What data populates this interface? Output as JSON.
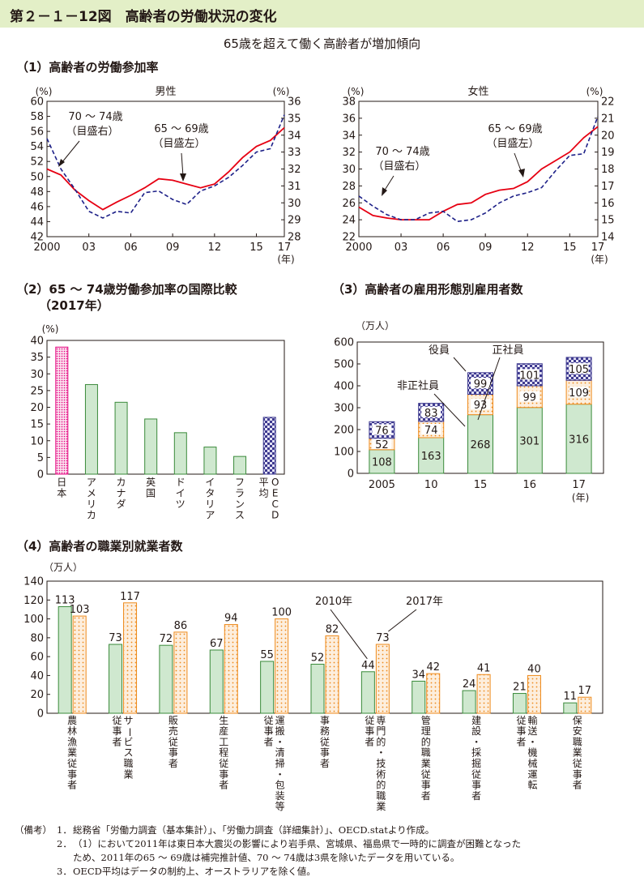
{
  "header": {
    "title": "第２－１－12図　高齢者の労働状況の変化",
    "subtitle": "65歳を超えて働く高齢者が増加傾向"
  },
  "sections": {
    "s1": "（1）高齢者の労働参加率",
    "s2a": "（2）65 ～ 74歳労働参加率の国際比較",
    "s2b": "（2017年）",
    "s3": "（3）高齢者の雇用形態別雇用者数",
    "s4": "（4）高齢者の職業別就業者数"
  },
  "colors": {
    "line_solid": "#e60012",
    "line_dashed": "#1d2088",
    "bar_green_fill": "#cfe8cf",
    "bar_green_stroke": "#3a8a3a",
    "japan_pink": "#e4007f",
    "oecd_blue": "#3e3a8f",
    "orange_dots": "#ee8a1b",
    "banner": "#e3efc7"
  },
  "chart_data": [
    {
      "id": "male",
      "type": "line",
      "title": "男性",
      "unit_left": "(%)",
      "unit_right": "(%)",
      "x_unit": "(年)",
      "x_ticks": [
        "2000",
        "03",
        "06",
        "09",
        "12",
        "15",
        "17"
      ],
      "x_tick_years": [
        2000,
        2003,
        2006,
        2009,
        2012,
        2015,
        2017
      ],
      "x_range": [
        2000,
        2017
      ],
      "ylim_left": [
        42,
        60
      ],
      "yticks_left": [
        42,
        44,
        46,
        48,
        50,
        52,
        54,
        56,
        58,
        60
      ],
      "ylim_right": [
        28,
        36
      ],
      "yticks_right": [
        28,
        29,
        30,
        31,
        32,
        33,
        34,
        35,
        36
      ],
      "series": [
        {
          "name": "65 ～ 69歳（目盛左）",
          "axis": "left",
          "style": "solid",
          "x": [
            2000,
            2001,
            2002,
            2003,
            2004,
            2005,
            2006,
            2007,
            2008,
            2009,
            2010,
            2011,
            2012,
            2013,
            2014,
            2015,
            2016,
            2017
          ],
          "y": [
            51.0,
            50.2,
            48.2,
            46.8,
            45.6,
            46.6,
            47.5,
            48.5,
            49.7,
            49.5,
            49.0,
            48.5,
            49.0,
            50.6,
            52.5,
            54.0,
            54.8,
            56.5
          ]
        },
        {
          "name": "70 ～ 74歳（目盛右）",
          "axis": "right",
          "style": "dashed",
          "x": [
            2000,
            2001,
            2002,
            2003,
            2004,
            2005,
            2006,
            2007,
            2008,
            2009,
            2010,
            2011,
            2012,
            2013,
            2014,
            2015,
            2016,
            2017
          ],
          "y": [
            33.8,
            32.0,
            30.8,
            29.5,
            29.1,
            29.5,
            29.4,
            30.6,
            30.7,
            30.2,
            29.9,
            30.7,
            31.0,
            31.5,
            32.2,
            33.0,
            33.2,
            35.2
          ]
        }
      ],
      "annotations": [
        {
          "text": [
            "70 ～ 74歳",
            "（目盛右）"
          ]
        },
        {
          "text": [
            "65 ～ 69歳",
            "（目盛左）"
          ]
        }
      ]
    },
    {
      "id": "female",
      "type": "line",
      "title": "女性",
      "unit_left": "(%)",
      "unit_right": "(%)",
      "x_unit": "(年)",
      "x_ticks": [
        "2000",
        "03",
        "06",
        "09",
        "12",
        "15",
        "17"
      ],
      "x_tick_years": [
        2000,
        2003,
        2006,
        2009,
        2012,
        2015,
        2017
      ],
      "x_range": [
        2000,
        2017
      ],
      "ylim_left": [
        22,
        38
      ],
      "yticks_left": [
        22,
        24,
        26,
        28,
        30,
        32,
        34,
        36,
        38
      ],
      "ylim_right": [
        14,
        22
      ],
      "yticks_right": [
        14,
        15,
        16,
        17,
        18,
        19,
        20,
        21,
        22
      ],
      "series": [
        {
          "name": "65 ～ 69歳（目盛左）",
          "axis": "left",
          "style": "solid",
          "x": [
            2000,
            2001,
            2002,
            2003,
            2004,
            2005,
            2006,
            2007,
            2008,
            2009,
            2010,
            2011,
            2012,
            2013,
            2014,
            2015,
            2016,
            2017
          ],
          "y": [
            25.5,
            24.5,
            24.2,
            24.0,
            24.0,
            24.0,
            25.0,
            25.8,
            26.0,
            27.0,
            27.5,
            27.7,
            28.5,
            30.0,
            31.0,
            32.0,
            33.7,
            35.0
          ]
        },
        {
          "name": "70 ～ 74歳（目盛右）",
          "axis": "right",
          "style": "dashed",
          "x": [
            2000,
            2001,
            2002,
            2003,
            2004,
            2005,
            2006,
            2007,
            2008,
            2009,
            2010,
            2011,
            2012,
            2013,
            2014,
            2015,
            2016,
            2017
          ],
          "y": [
            16.4,
            15.8,
            15.3,
            15.0,
            15.0,
            15.4,
            15.5,
            14.9,
            15.0,
            15.4,
            16.0,
            16.4,
            16.6,
            16.9,
            17.9,
            18.8,
            18.9,
            21.1
          ]
        }
      ],
      "annotations": [
        {
          "text": [
            "70 ～ 74歳",
            "（目盛右）"
          ]
        },
        {
          "text": [
            "65 ～ 69歳",
            "（目盛左）"
          ]
        }
      ]
    },
    {
      "id": "intl",
      "type": "bar",
      "unit": "(%)",
      "ylim": [
        0,
        40
      ],
      "yticks": [
        0,
        5,
        10,
        15,
        20,
        25,
        30,
        35,
        40
      ],
      "categories": [
        "日本",
        "アメリカ",
        "カナダ",
        "英国",
        "ドイツ",
        "イタリア",
        "フランス",
        "OECD平均"
      ],
      "category_lines": [
        [
          "日本"
        ],
        [
          "アメリカ"
        ],
        [
          "カナダ"
        ],
        [
          "英国"
        ],
        [
          "ドイツ"
        ],
        [
          "イタリア"
        ],
        [
          "フランス"
        ],
        [
          "平均",
          "OECD"
        ]
      ],
      "values": [
        38.0,
        26.8,
        21.5,
        16.5,
        12.4,
        8.1,
        5.3,
        17.0
      ],
      "styles": [
        "japan",
        "green",
        "green",
        "green",
        "green",
        "green",
        "green",
        "oecd"
      ]
    },
    {
      "id": "employ",
      "type": "bar",
      "stacked": true,
      "unit": "（万人）",
      "x_unit": "(年)",
      "ylim": [
        0,
        600
      ],
      "yticks": [
        0,
        100,
        200,
        300,
        400,
        500,
        600
      ],
      "categories": [
        "2005",
        "10",
        "15",
        "16",
        "17"
      ],
      "series": [
        {
          "name": "正社員",
          "values": [
            108,
            163,
            268,
            301,
            316
          ]
        },
        {
          "name": "非正社員",
          "values": [
            52,
            74,
            93,
            99,
            109
          ]
        },
        {
          "name": "役員",
          "values": [
            76,
            83,
            99,
            101,
            105
          ]
        }
      ],
      "legend_labels": [
        "役員",
        "正社員",
        "非正社員"
      ]
    },
    {
      "id": "occupation",
      "type": "bar",
      "unit": "（万人）",
      "ylim": [
        0,
        140
      ],
      "yticks": [
        0,
        20,
        40,
        60,
        80,
        100,
        120,
        140
      ],
      "categories": [
        "農林漁業従事者",
        "サービス職業従事者",
        "販売従事者",
        "生産工程従事者",
        "運搬・清掃・包装等従事者",
        "事務従事者",
        "専門的・技術的職業従事者",
        "管理的職業従事者",
        "建設・採掘従事者",
        "輸送・機械運転従事者",
        "保安職業従事者"
      ],
      "category_lines": [
        [
          "農林漁業従事者"
        ],
        [
          "サービス職業",
          "従事者"
        ],
        [
          "販売従事者"
        ],
        [
          "生産工程従事者"
        ],
        [
          "運搬・清掃・包装等",
          "従事者"
        ],
        [
          "事務従事者"
        ],
        [
          "専門的・技術的職業",
          "従事者"
        ],
        [
          "管理的職業従事者"
        ],
        [
          "建設・採掘従事者"
        ],
        [
          "輸送・機械運転",
          "従事者"
        ],
        [
          "保安職業従事者"
        ]
      ],
      "series": [
        {
          "name": "2010年",
          "values": [
            113,
            73,
            72,
            67,
            55,
            52,
            44,
            34,
            24,
            21,
            11
          ]
        },
        {
          "name": "2017年",
          "values": [
            103,
            117,
            86,
            94,
            100,
            82,
            73,
            42,
            41,
            40,
            17
          ]
        }
      ]
    }
  ],
  "notes": {
    "label": "（備考）",
    "items": [
      {
        "num": "1．",
        "lines": [
          "総務省「労働力調査（基本集計）」、「労働力調査（詳細集計）」、OECD.statより作成。"
        ]
      },
      {
        "num": "2．",
        "lines": [
          "（1）において2011年は東日本大震災の影響により岩手県、宮城県、福島県で一時的に調査が困難となった",
          "ため、2011年の65 ～ 69歳は補完推計値、70 ～ 74歳は3県を除いたデータを用いている。"
        ]
      },
      {
        "num": "3．",
        "lines": [
          "OECD平均はデータの制約上、オーストラリアを除く値。"
        ]
      }
    ]
  }
}
